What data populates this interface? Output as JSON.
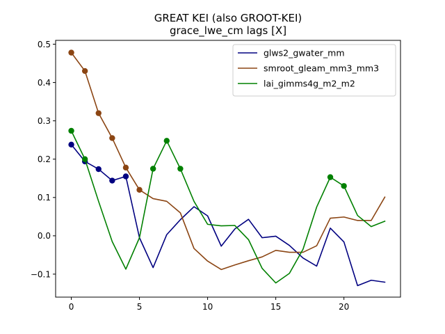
{
  "chart_data": {
    "type": "line",
    "title": "GREAT KEI (also GROOT-KEI)",
    "subtitle": "grace_lwe_cm lags [X]",
    "xlabel": "",
    "ylabel": "",
    "xlim": [
      -1.15,
      24.15
    ],
    "ylim": [
      -0.16,
      0.51
    ],
    "xticks": [
      0,
      5,
      10,
      15,
      20
    ],
    "yticks": [
      -0.1,
      0.0,
      0.1,
      0.2,
      0.3,
      0.4,
      0.5
    ],
    "ytick_labels": [
      "−0.1",
      "0.0",
      "0.1",
      "0.2",
      "0.3",
      "0.4",
      "0.5"
    ],
    "grid": false,
    "legend": "top-right",
    "x": [
      0,
      1,
      2,
      3,
      4,
      5,
      6,
      7,
      8,
      9,
      10,
      11,
      12,
      13,
      14,
      15,
      16,
      17,
      18,
      19,
      20,
      21,
      22,
      23
    ],
    "series": [
      {
        "name": "glws2_gwater_mm",
        "color": "#000080",
        "values": [
          0.238,
          0.194,
          0.174,
          0.144,
          0.155,
          -0.005,
          -0.083,
          0.003,
          0.042,
          0.076,
          0.052,
          -0.027,
          0.018,
          0.043,
          -0.005,
          -0.001,
          -0.025,
          -0.058,
          -0.079,
          0.02,
          -0.016,
          -0.13,
          -0.116,
          -0.121
        ],
        "markers": [
          0,
          1,
          2,
          3,
          4
        ]
      },
      {
        "name": "smroot_gleam_mm3_mm3",
        "color": "#8B4513",
        "values": [
          0.478,
          0.43,
          0.32,
          0.255,
          0.178,
          0.12,
          0.097,
          0.09,
          0.06,
          -0.033,
          -0.066,
          -0.088,
          -0.076,
          -0.065,
          -0.055,
          -0.038,
          -0.043,
          -0.043,
          -0.026,
          0.046,
          0.049,
          0.04,
          0.04,
          0.101
        ],
        "markers": [
          0,
          1,
          2,
          3,
          4,
          5
        ]
      },
      {
        "name": "lai_gimms4g_m2_m2",
        "color": "#008000",
        "values": [
          0.274,
          0.2,
          0.09,
          -0.015,
          -0.087,
          -0.005,
          0.175,
          0.248,
          0.175,
          0.09,
          0.03,
          0.026,
          0.027,
          -0.01,
          -0.085,
          -0.123,
          -0.098,
          -0.035,
          0.075,
          0.153,
          0.13,
          0.053,
          0.024,
          0.038
        ],
        "markers": [
          0,
          1,
          6,
          7,
          8,
          19,
          20
        ]
      }
    ]
  }
}
